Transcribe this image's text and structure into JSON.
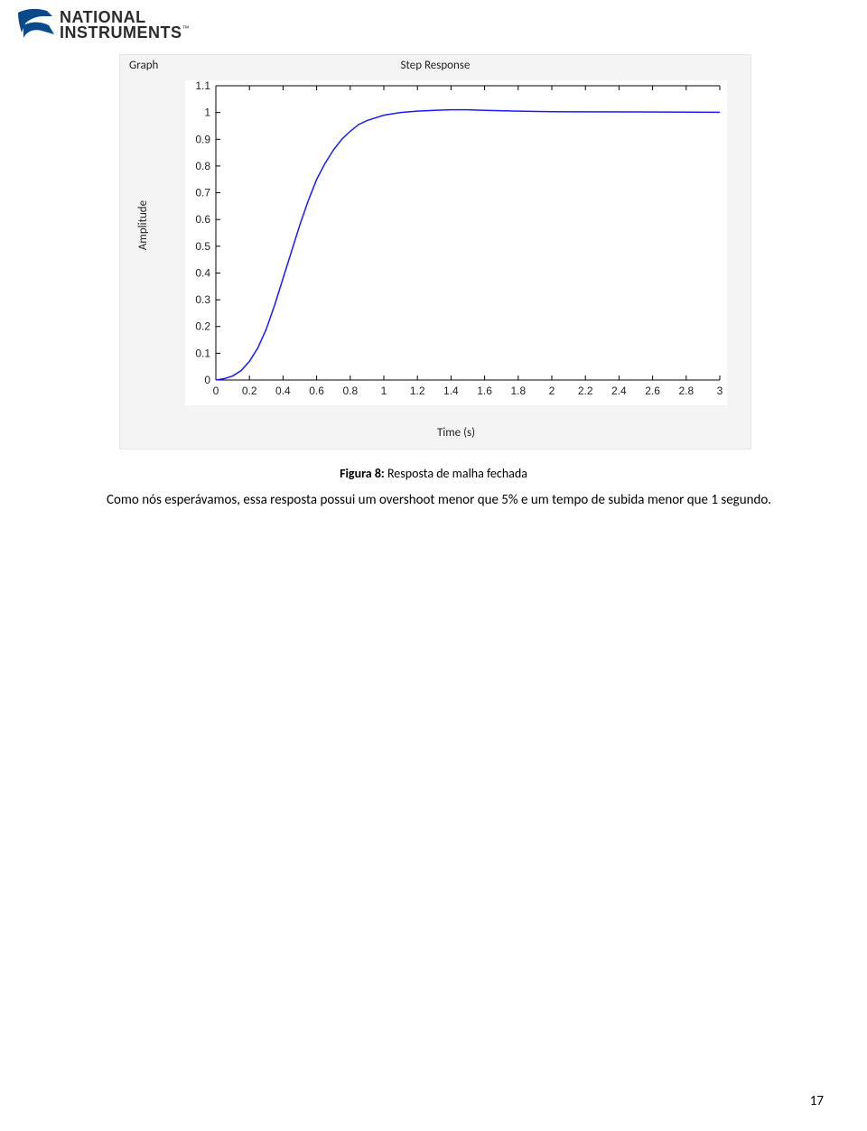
{
  "logo": {
    "line1": "NATIONAL",
    "line2": "INSTRUMENTS",
    "tm": "™",
    "eagle_color": "#0a4a8a",
    "text_color": "#2b2b2b"
  },
  "chart": {
    "type": "line",
    "header_left": "Graph",
    "header_center": "Step Response",
    "xlabel": "Time (s)",
    "ylabel": "Amplitude",
    "xlim": [
      0,
      3
    ],
    "ylim": [
      0,
      1.1
    ],
    "xticks": [
      0,
      0.2,
      0.4,
      0.6,
      0.8,
      1,
      1.2,
      1.4,
      1.6,
      1.8,
      2,
      2.2,
      2.4,
      2.6,
      2.8,
      3
    ],
    "yticks": [
      0,
      0.1,
      0.2,
      0.3,
      0.4,
      0.5,
      0.6,
      0.7,
      0.8,
      0.9,
      1,
      1.1
    ],
    "line_color": "#1a1aff",
    "line_width": 1.5,
    "tick_font_size": 12,
    "axis_color": "#000000",
    "plot_bg": "#ffffff",
    "panel_bg": "#f4f4f4",
    "series": {
      "x": [
        0,
        0.05,
        0.1,
        0.15,
        0.2,
        0.25,
        0.3,
        0.35,
        0.4,
        0.45,
        0.5,
        0.55,
        0.6,
        0.65,
        0.7,
        0.75,
        0.8,
        0.85,
        0.9,
        0.95,
        1.0,
        1.1,
        1.2,
        1.3,
        1.4,
        1.5,
        1.6,
        1.8,
        2.0,
        2.5,
        3.0
      ],
      "y": [
        0.0,
        0.005,
        0.015,
        0.035,
        0.07,
        0.12,
        0.19,
        0.28,
        0.38,
        0.48,
        0.58,
        0.67,
        0.75,
        0.81,
        0.86,
        0.9,
        0.93,
        0.955,
        0.97,
        0.98,
        0.99,
        1.0,
        1.005,
        1.008,
        1.01,
        1.01,
        1.008,
        1.005,
        1.003,
        1.002,
        1.001
      ]
    }
  },
  "caption": {
    "label_bold": "Figura 8:",
    "label_rest": " Resposta de malha fechada"
  },
  "body": {
    "text": "Como nós esperávamos, essa resposta possui um overshoot menor que 5% e um tempo de subida menor que 1 segundo."
  },
  "page_number": "17"
}
